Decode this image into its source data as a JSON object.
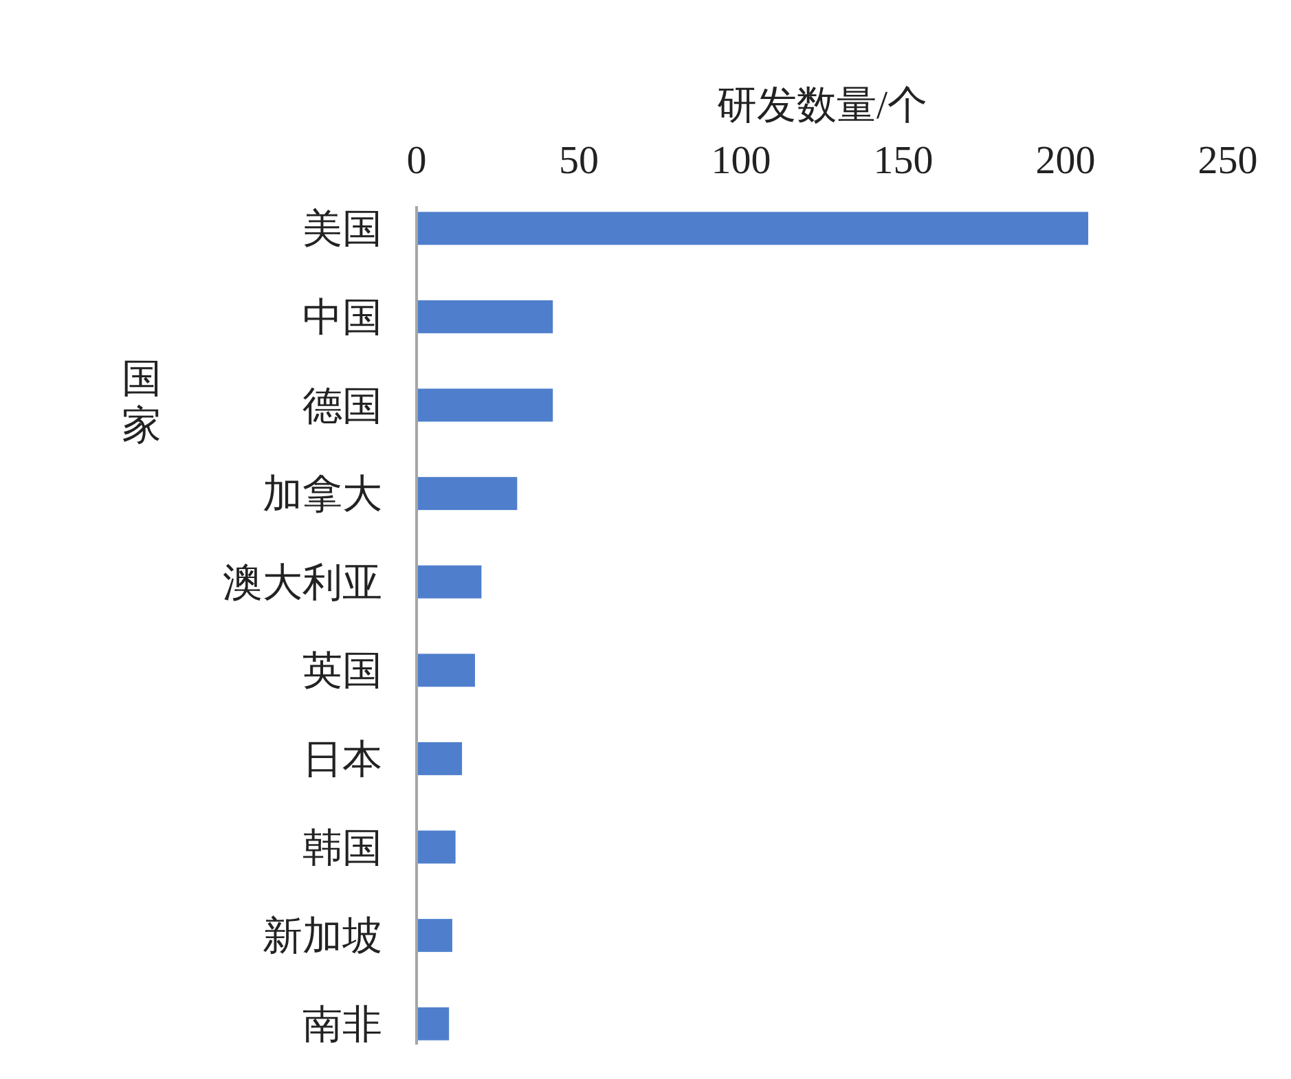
{
  "chart_data": {
    "type": "bar",
    "orientation": "horizontal",
    "xlabel": "研发数量/个",
    "ylabel": "国家",
    "categories": [
      "美国",
      "中国",
      "德国",
      "加拿大",
      "澳大利亚",
      "英国",
      "日本",
      "韩国",
      "新加坡",
      "南非"
    ],
    "values": [
      207,
      42,
      42,
      31,
      20,
      18,
      14,
      12,
      11,
      10
    ],
    "color": "#4f7fcc",
    "xlim": [
      0,
      250
    ],
    "xticks": [
      0,
      50,
      100,
      150,
      200,
      250
    ],
    "grid": false
  }
}
